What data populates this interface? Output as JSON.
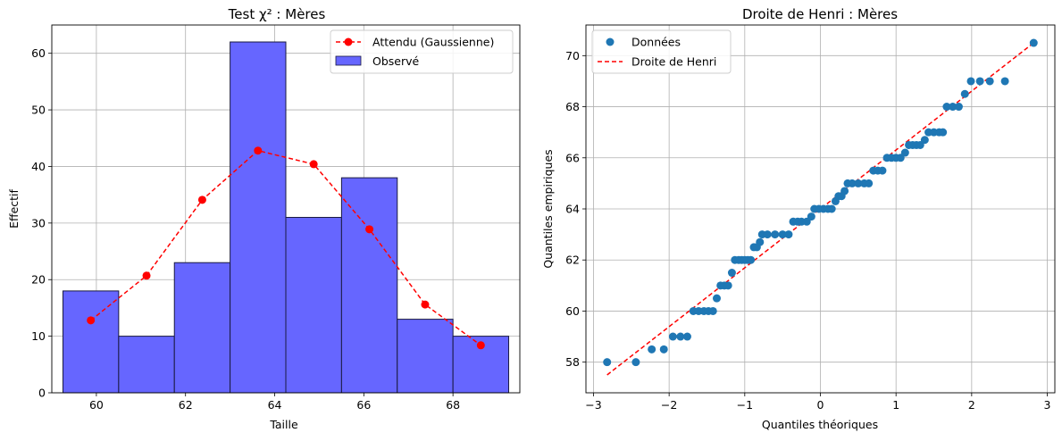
{
  "chart_data": [
    {
      "type": "bar",
      "title": "Test χ² : Mères",
      "xlabel": "Taille",
      "ylabel": "Effectif",
      "xlim": [
        59.0,
        69.5
      ],
      "ylim": [
        0,
        65
      ],
      "xticks": [
        60,
        62,
        64,
        66,
        68
      ],
      "yticks": [
        0,
        10,
        20,
        30,
        40,
        50,
        60
      ],
      "grid": true,
      "legend_position": "top-right",
      "colors": {
        "bars": "#6666ff",
        "bar_edge": "#1a1a40",
        "expected": "#ff0000"
      },
      "bins": [
        {
          "x0": 59.25,
          "x1": 60.5,
          "value": 18
        },
        {
          "x0": 60.5,
          "x1": 61.75,
          "value": 10
        },
        {
          "x0": 61.75,
          "x1": 63.0,
          "value": 23
        },
        {
          "x0": 63.0,
          "x1": 64.25,
          "value": 62
        },
        {
          "x0": 64.25,
          "x1": 65.5,
          "value": 31
        },
        {
          "x0": 65.5,
          "x1": 66.75,
          "value": 38
        },
        {
          "x0": 66.75,
          "x1": 68.0,
          "value": 13
        },
        {
          "x0": 68.0,
          "x1": 69.25,
          "value": 10
        }
      ],
      "series": [
        {
          "name": "Attendu (Gaussienne)",
          "x": [
            59.875,
            61.125,
            62.375,
            63.625,
            64.875,
            66.125,
            67.375,
            68.625
          ],
          "values": [
            12.8,
            20.7,
            34.1,
            42.8,
            40.4,
            28.9,
            15.6,
            8.4
          ]
        },
        {
          "name": "Observé"
        }
      ]
    },
    {
      "type": "scatter",
      "title": "Droite de Henri : Mères",
      "xlabel": "Quantiles théoriques",
      "ylabel": "Quantiles empiriques",
      "xlim": [
        -3.1,
        3.1
      ],
      "ylim": [
        56.8,
        71.2
      ],
      "xticks": [
        -3,
        -2,
        -1,
        0,
        1,
        2,
        3
      ],
      "yticks": [
        58,
        60,
        62,
        64,
        66,
        68,
        70
      ],
      "grid": true,
      "legend_position": "top-left",
      "colors": {
        "points": "#1f77b4",
        "line": "#ff0000"
      },
      "series": [
        {
          "name": "Données",
          "points": [
            [
              -2.82,
              58.0
            ],
            [
              -2.44,
              58.0
            ],
            [
              -2.23,
              58.5
            ],
            [
              -2.07,
              58.5
            ],
            [
              -1.95,
              59.0
            ],
            [
              -1.85,
              59.0
            ],
            [
              -1.76,
              59.0
            ],
            [
              -1.68,
              60.0
            ],
            [
              -1.61,
              60.0
            ],
            [
              -1.54,
              60.0
            ],
            [
              -1.48,
              60.0
            ],
            [
              -1.42,
              60.0
            ],
            [
              -1.37,
              60.5
            ],
            [
              -1.32,
              61.0
            ],
            [
              -1.27,
              61.0
            ],
            [
              -1.22,
              61.0
            ],
            [
              -1.17,
              61.5
            ],
            [
              -1.13,
              62.0
            ],
            [
              -1.08,
              62.0
            ],
            [
              -1.04,
              62.0
            ],
            [
              -1.0,
              62.0
            ],
            [
              -0.96,
              62.0
            ],
            [
              -0.92,
              62.0
            ],
            [
              -0.88,
              62.5
            ],
            [
              -0.84,
              62.5
            ],
            [
              -0.8,
              62.7
            ],
            [
              -0.77,
              63.0
            ],
            [
              -0.7,
              63.0
            ],
            [
              -0.6,
              63.0
            ],
            [
              -0.5,
              63.0
            ],
            [
              -0.42,
              63.0
            ],
            [
              -0.36,
              63.5
            ],
            [
              -0.3,
              63.5
            ],
            [
              -0.25,
              63.5
            ],
            [
              -0.18,
              63.5
            ],
            [
              -0.12,
              63.7
            ],
            [
              -0.08,
              64.0
            ],
            [
              -0.02,
              64.0
            ],
            [
              0.04,
              64.0
            ],
            [
              0.1,
              64.0
            ],
            [
              0.15,
              64.0
            ],
            [
              0.2,
              64.3
            ],
            [
              0.24,
              64.5
            ],
            [
              0.28,
              64.5
            ],
            [
              0.32,
              64.7
            ],
            [
              0.36,
              65.0
            ],
            [
              0.42,
              65.0
            ],
            [
              0.5,
              65.0
            ],
            [
              0.58,
              65.0
            ],
            [
              0.64,
              65.0
            ],
            [
              0.7,
              65.5
            ],
            [
              0.76,
              65.5
            ],
            [
              0.82,
              65.5
            ],
            [
              0.88,
              66.0
            ],
            [
              0.94,
              66.0
            ],
            [
              1.0,
              66.0
            ],
            [
              1.06,
              66.0
            ],
            [
              1.12,
              66.2
            ],
            [
              1.17,
              66.5
            ],
            [
              1.22,
              66.5
            ],
            [
              1.27,
              66.5
            ],
            [
              1.32,
              66.5
            ],
            [
              1.38,
              66.7
            ],
            [
              1.43,
              67.0
            ],
            [
              1.5,
              67.0
            ],
            [
              1.57,
              67.0
            ],
            [
              1.62,
              67.0
            ],
            [
              1.67,
              68.0
            ],
            [
              1.75,
              68.0
            ],
            [
              1.83,
              68.0
            ],
            [
              1.91,
              68.5
            ],
            [
              1.99,
              69.0
            ],
            [
              2.11,
              69.0
            ],
            [
              2.24,
              69.0
            ],
            [
              2.44,
              69.0
            ],
            [
              2.82,
              70.5
            ]
          ]
        },
        {
          "name": "Droite de Henri",
          "line": [
            [
              -2.82,
              57.5
            ],
            [
              2.82,
              70.5
            ]
          ]
        }
      ]
    }
  ]
}
